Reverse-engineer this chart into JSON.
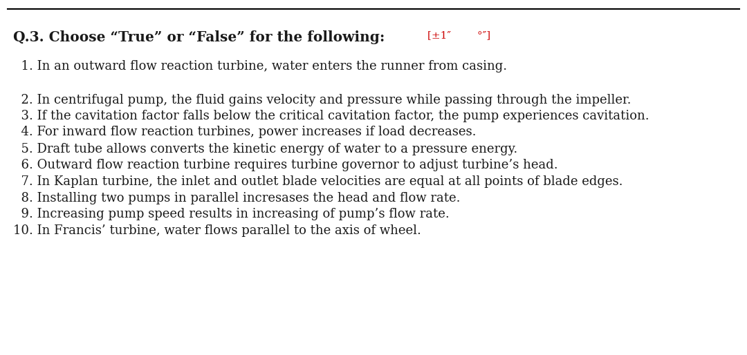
{
  "bg_color": "#ffffff",
  "top_line_color": "#000000",
  "title_bold": "Q.3. Choose “True” or “False” for the following:",
  "title_annotation": "[±1″        °″]",
  "title_annotation_color": "#cc0000",
  "title_fontsize": 14.5,
  "items": [
    "  1. In an outward flow reaction turbine, water enters the runner from casing.",
    "",
    "  2. In centrifugal pump, the fluid gains velocity and pressure while passing through the impeller.",
    "  3. If the cavitation factor falls below the critical cavitation factor, the pump experiences cavitation.",
    "",
    "  4. For inward flow reaction turbines, power increases if load decreases.",
    "",
    "  5. Draft tube allows converts the kinetic energy of water to a pressure energy.",
    "",
    "  6. Outward flow reaction turbine requires turbine governor to adjust turbine’s head.",
    "",
    "  7. In Kaplan turbine, the inlet and outlet blade velocities are equal at all points of blade edges.",
    "",
    "  8. Installing two pumps in parallel incresases the head and flow rate.",
    "",
    "  9. Increasing pump speed results in increasing of pump’s flow rate.",
    "",
    "10. In Francis’ turbine, water flows parallel to the axis of wheel."
  ],
  "item_fontsize": 13.0,
  "text_color": "#1a1a1a",
  "font_family": "DejaVu Serif"
}
